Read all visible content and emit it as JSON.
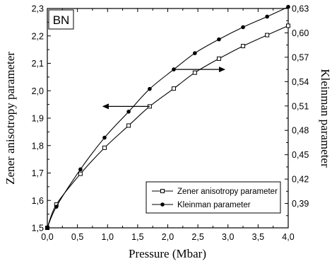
{
  "chart_data": {
    "type": "line",
    "tag": "BN",
    "xlabel": "Pressure (Mbar)",
    "ylabel_left": "Zener anisotropy parameter",
    "ylabel_right": "Kleinman parameter",
    "xlim": [
      0,
      4.0
    ],
    "ylim_left": [
      1.5,
      2.3
    ],
    "ylim_right": [
      0.36,
      0.63
    ],
    "x_ticks": [
      "0,0",
      "0,5",
      "1,0",
      "1,5",
      "2,0",
      "2,5",
      "3,0",
      "3,5",
      "4,0"
    ],
    "y_left_ticks": [
      "1,5",
      "1,6",
      "1,7",
      "1,8",
      "1,9",
      "2,0",
      "2,1",
      "2,2",
      "2,3"
    ],
    "y_right_ticks": [
      "0,39",
      "0,42",
      "0,45",
      "0,48",
      "0,51",
      "0,54",
      "0,57",
      "0,60",
      "0,63"
    ],
    "grid": false,
    "legend_position": "lower-right",
    "series": [
      {
        "name": "Zener anisotropy parameter",
        "axis": "left",
        "marker": "open-square",
        "x": [
          0,
          0.15,
          0.55,
          0.95,
          1.35,
          1.7,
          2.1,
          2.45,
          2.85,
          3.25,
          3.65,
          4.0
        ],
        "values": [
          1.5,
          1.585,
          1.697,
          1.792,
          1.873,
          1.943,
          2.008,
          2.066,
          2.117,
          2.163,
          2.203,
          2.237
        ]
      },
      {
        "name": "Kleinman parameter",
        "axis": "right",
        "marker": "filled-circle",
        "x": [
          0,
          0.15,
          0.55,
          0.95,
          1.35,
          1.7,
          2.1,
          2.45,
          2.85,
          3.25,
          3.65,
          4.0
        ],
        "values": [
          0.36,
          0.386,
          0.432,
          0.471,
          0.503,
          0.531,
          0.555,
          0.575,
          0.592,
          0.607,
          0.62,
          0.632
        ]
      }
    ],
    "arrows": [
      {
        "at_x": 1.7,
        "at_y": 1.943,
        "points_to": "left"
      },
      {
        "at_x": 2.1,
        "at_y": 0.555,
        "points_to": "right"
      }
    ]
  }
}
